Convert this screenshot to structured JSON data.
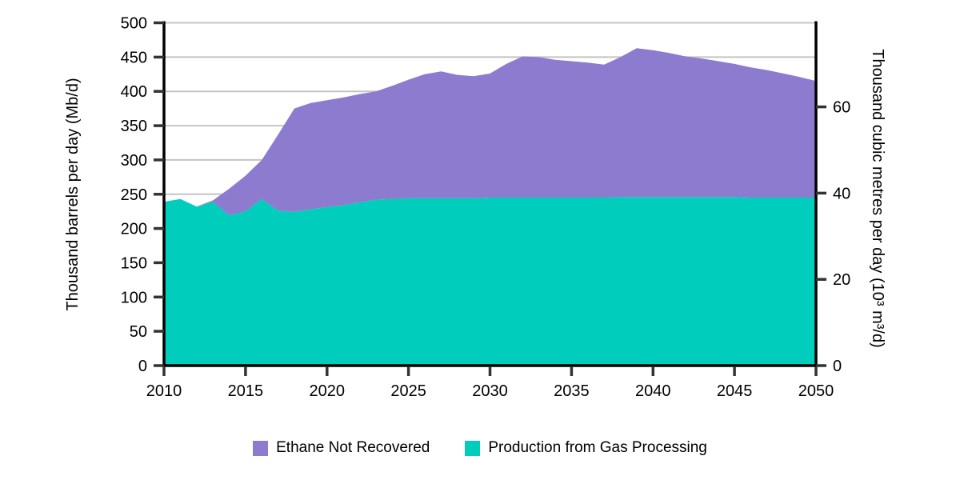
{
  "chart_data": {
    "type": "area",
    "stacked": true,
    "title": "",
    "x": [
      2010,
      2011,
      2012,
      2013,
      2014,
      2015,
      2016,
      2017,
      2018,
      2019,
      2020,
      2021,
      2022,
      2023,
      2024,
      2025,
      2026,
      2027,
      2028,
      2029,
      2030,
      2031,
      2032,
      2033,
      2034,
      2035,
      2036,
      2037,
      2038,
      2039,
      2040,
      2041,
      2042,
      2043,
      2044,
      2045,
      2046,
      2047,
      2048,
      2049,
      2050
    ],
    "series": [
      {
        "name": "Production from Gas Processing",
        "color": "#00CDBB",
        "values": [
          239,
          243,
          232,
          239,
          219,
          225,
          243,
          226,
          224,
          228,
          231,
          234,
          238,
          242,
          243,
          244,
          244,
          244,
          244,
          244,
          245,
          245,
          245,
          245,
          245,
          245,
          245,
          245,
          246,
          246,
          246,
          246,
          246,
          246,
          246,
          246,
          245,
          245,
          245,
          245,
          245
        ]
      },
      {
        "name": "Ethane Not Recovered",
        "color": "#8C7BCE",
        "values": [
          0,
          0,
          0,
          2,
          39,
          52,
          57,
          111,
          151,
          155,
          156,
          157,
          158,
          158,
          165,
          173,
          181,
          185,
          180,
          178,
          181,
          195,
          206,
          205,
          201,
          199,
          197,
          194,
          204,
          217,
          214,
          210,
          205,
          202,
          198,
          194,
          190,
          186,
          181,
          176,
          170
        ]
      }
    ],
    "x_axis": {
      "range": [
        2010,
        2050
      ],
      "ticks": [
        2010,
        2015,
        2020,
        2025,
        2030,
        2035,
        2040,
        2045,
        2050
      ]
    },
    "left_axis": {
      "label": "Thousand barrels per day (Mb/d)",
      "range": [
        0,
        500
      ],
      "ticks": [
        0,
        50,
        100,
        150,
        200,
        250,
        300,
        350,
        400,
        450,
        500
      ]
    },
    "right_axis": {
      "label": "Thousand cubic metres per day (10³ m³/d)",
      "ticks": [
        0,
        20,
        40,
        60
      ],
      "barrels_per_cubic_metre": 6.2898
    },
    "grid": {
      "color": "#C4C4C4",
      "values": [
        50,
        100,
        150,
        200,
        250,
        300,
        350,
        400,
        450,
        500
      ]
    },
    "axis_color": "#000000",
    "tick_color": "#333333",
    "legend": {
      "position": "bottom",
      "entries": [
        {
          "label": "Ethane Not Recovered",
          "color": "#8C7BCE"
        },
        {
          "label": "Production from Gas Processing",
          "color": "#00CDBB"
        }
      ]
    }
  }
}
